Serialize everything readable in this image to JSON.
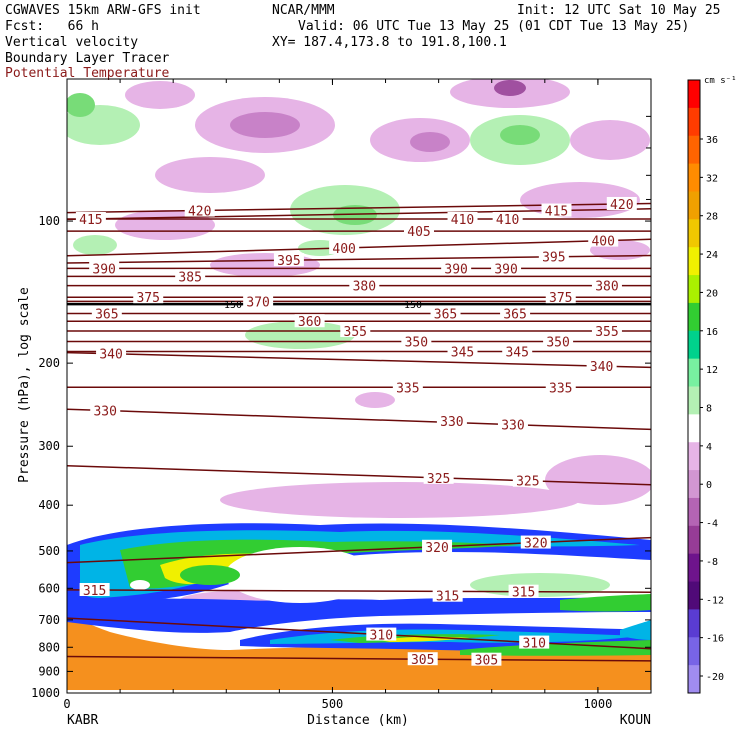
{
  "header": {
    "left_line1": "CGWAVES 15km ARW-GFS init",
    "left_line2": "Fcst:   66 h",
    "left_line3": "Vertical velocity",
    "left_line4": "Boundary Layer Tracer",
    "left_line5": "Potential Temperature",
    "center_line1": "NCAR/MMM",
    "center_line3": "XY= 187.4,173.8 to 191.8,100.1",
    "right_line1": "Init: 12 UTC Sat 10 May 25",
    "right_line2": "Valid: 06 UTC Tue 13 May 25 (01 CDT Tue 13 May 25)"
  },
  "colors": {
    "theta_line": "#6b0a0a",
    "potential_temperature_label": "#8b1a1a",
    "tracer_orange": "#f5901e",
    "tracer_yellow": "#f0f000",
    "tracer_green": "#32cd32",
    "tracer_cyan": "#00b4e6",
    "tracer_blue": "#1e3cff",
    "w_up_light": "#b4f0b4",
    "w_up_mid": "#78dc78",
    "w_down_light": "#e6b4e6",
    "w_down_mid": "#c882c8",
    "w_down_dark": "#a050a0"
  },
  "chart_data": {
    "type": "heatmap",
    "xlabel": "Distance (km)",
    "ylabel": "Pressure (hPa), log scale",
    "xlim": [
      0,
      1100
    ],
    "ylim": [
      1000,
      50
    ],
    "x_ticks": [
      "0",
      "500",
      "1000"
    ],
    "y_ticks": [
      "100",
      "200",
      "300",
      "400",
      "500",
      "600",
      "700",
      "800",
      "900",
      "1000"
    ],
    "x_endpoints": {
      "left": "KABR",
      "right": "KOUN"
    },
    "colorbar": {
      "units": "cm s⁻¹",
      "tick_labels": [
        "36",
        "32",
        "28",
        "24",
        "20",
        "16",
        "12",
        "8",
        "4",
        "0",
        "-4",
        "-8",
        "-12",
        "-16",
        "-20"
      ],
      "colors": [
        "#ff0000",
        "#ff3c00",
        "#ff6400",
        "#ff8c00",
        "#f0a000",
        "#f0c800",
        "#f0f000",
        "#aaf000",
        "#32cd32",
        "#00d28c",
        "#78f0a0",
        "#b4f0b4",
        "#ffffff",
        "#e6b4e6",
        "#d296d2",
        "#b464b4",
        "#963c96",
        "#6e148c",
        "#500a78",
        "#5a3cd2",
        "#7864e6",
        "#a08cf0"
      ]
    },
    "theta_contour_labels": [
      {
        "text": "420",
        "x": 250,
        "p": 95
      },
      {
        "text": "420",
        "x": 1045,
        "p": 92
      },
      {
        "text": "415",
        "x": 45,
        "p": 99
      },
      {
        "text": "415",
        "x": 922,
        "p": 95
      },
      {
        "text": "410",
        "x": 745,
        "p": 99
      },
      {
        "text": "410",
        "x": 830,
        "p": 99
      },
      {
        "text": "405",
        "x": 663,
        "p": 105
      },
      {
        "text": "400",
        "x": 522,
        "p": 114
      },
      {
        "text": "400",
        "x": 1010,
        "p": 110
      },
      {
        "text": "395",
        "x": 418,
        "p": 121
      },
      {
        "text": "395",
        "x": 917,
        "p": 119
      },
      {
        "text": "390",
        "x": 70,
        "p": 126
      },
      {
        "text": "390",
        "x": 733,
        "p": 126
      },
      {
        "text": "390",
        "x": 827,
        "p": 126
      },
      {
        "text": "385",
        "x": 232,
        "p": 131
      },
      {
        "text": "380",
        "x": 560,
        "p": 137
      },
      {
        "text": "380",
        "x": 1017,
        "p": 137
      },
      {
        "text": "375",
        "x": 153,
        "p": 145
      },
      {
        "text": "375",
        "x": 930,
        "p": 145
      },
      {
        "text": "370",
        "x": 360,
        "p": 148
      },
      {
        "text": "365",
        "x": 75,
        "p": 157
      },
      {
        "text": "365",
        "x": 713,
        "p": 157
      },
      {
        "text": "365",
        "x": 844,
        "p": 157
      },
      {
        "text": "360",
        "x": 457,
        "p": 163
      },
      {
        "text": "355",
        "x": 543,
        "p": 171
      },
      {
        "text": "355",
        "x": 1017,
        "p": 171
      },
      {
        "text": "350",
        "x": 658,
        "p": 180
      },
      {
        "text": "350",
        "x": 925,
        "p": 180
      },
      {
        "text": "345",
        "x": 745,
        "p": 189
      },
      {
        "text": "345",
        "x": 848,
        "p": 189
      },
      {
        "text": "340",
        "x": 83,
        "p": 191
      },
      {
        "text": "340",
        "x": 1007,
        "p": 203
      },
      {
        "text": "335",
        "x": 642,
        "p": 225
      },
      {
        "text": "335",
        "x": 930,
        "p": 225
      },
      {
        "text": "330",
        "x": 72,
        "p": 252
      },
      {
        "text": "330",
        "x": 725,
        "p": 265
      },
      {
        "text": "330",
        "x": 840,
        "p": 270
      },
      {
        "text": "325",
        "x": 700,
        "p": 350
      },
      {
        "text": "325",
        "x": 868,
        "p": 355
      },
      {
        "text": "320",
        "x": 697,
        "p": 490
      },
      {
        "text": "320",
        "x": 883,
        "p": 480
      },
      {
        "text": "315",
        "x": 52,
        "p": 605
      },
      {
        "text": "315",
        "x": 717,
        "p": 622
      },
      {
        "text": "315",
        "x": 860,
        "p": 610
      },
      {
        "text": "310",
        "x": 592,
        "p": 752
      },
      {
        "text": "310",
        "x": 880,
        "p": 782
      },
      {
        "text": "305",
        "x": 670,
        "p": 848
      },
      {
        "text": "305",
        "x": 790,
        "p": 850
      }
    ],
    "tropopause_label": {
      "text": "150",
      "p": 150
    }
  }
}
